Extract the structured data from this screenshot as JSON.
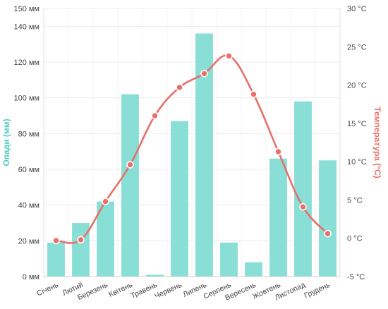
{
  "chart_data": {
    "type": "bar",
    "categories": [
      "Січень",
      "Лютий",
      "Березень",
      "Квітень",
      "Травень",
      "Червень",
      "Липень",
      "Серпень",
      "Вересень",
      "Жовтень",
      "Листопад",
      "Грудень"
    ],
    "series": [
      {
        "name": "Опади (мм)",
        "type": "bar",
        "axis": "left",
        "color": "#7fdcd3",
        "values": [
          19,
          30,
          42,
          102,
          1,
          87,
          136,
          19,
          8,
          66,
          98,
          65
        ]
      },
      {
        "name": "Температура (°C)",
        "type": "line",
        "axis": "right",
        "color": "#e8706a",
        "values": [
          -0.3,
          -0.2,
          4.8,
          9.6,
          16.0,
          19.7,
          21.5,
          23.8,
          18.8,
          11.3,
          4.1,
          0.6
        ]
      }
    ],
    "y_left": {
      "label": "Опади (мм)",
      "ylim": [
        0,
        150
      ],
      "ticks": [
        0,
        20,
        40,
        60,
        80,
        100,
        120,
        140,
        150
      ],
      "tick_labels": [
        "0 мм",
        "20 мм",
        "40 мм",
        "60 мм",
        "80 мм",
        "100 мм",
        "120 мм",
        "140 мм",
        "150 мм"
      ],
      "color": "#4ecdc4"
    },
    "y_right": {
      "label": "Температура (°C)",
      "ylim": [
        -5,
        30
      ],
      "ticks": [
        -5,
        0,
        5,
        10,
        15,
        20,
        25,
        30
      ],
      "tick_labels": [
        "-5 °C",
        "0 °C",
        "5 °C",
        "10 °C",
        "15 °C",
        "20 °C",
        "25 °C",
        "30 °C"
      ],
      "color": "#e8706a"
    },
    "grid": true,
    "legend": "none"
  }
}
